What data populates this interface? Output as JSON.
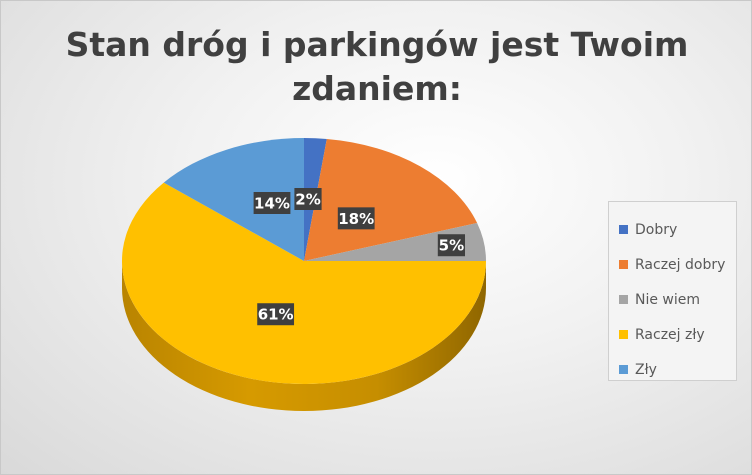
{
  "chart_data": {
    "type": "pie",
    "title": [
      "Stan dróg i parkingów jest Twoim",
      "zdaniem:"
    ],
    "categories": [
      "Dobry",
      "Raczej dobry",
      "Nie wiem",
      "Raczej zły",
      "Zły"
    ],
    "values": [
      2,
      18,
      5,
      61,
      14
    ],
    "data_labels": [
      "2%",
      "18%",
      "5%",
      "61%",
      "14%"
    ],
    "colors": [
      "#4472C4",
      "#ED7D31",
      "#A5A5A5",
      "#FFC000",
      "#5B9BD5"
    ],
    "legend_position": "right",
    "style": "3d"
  }
}
